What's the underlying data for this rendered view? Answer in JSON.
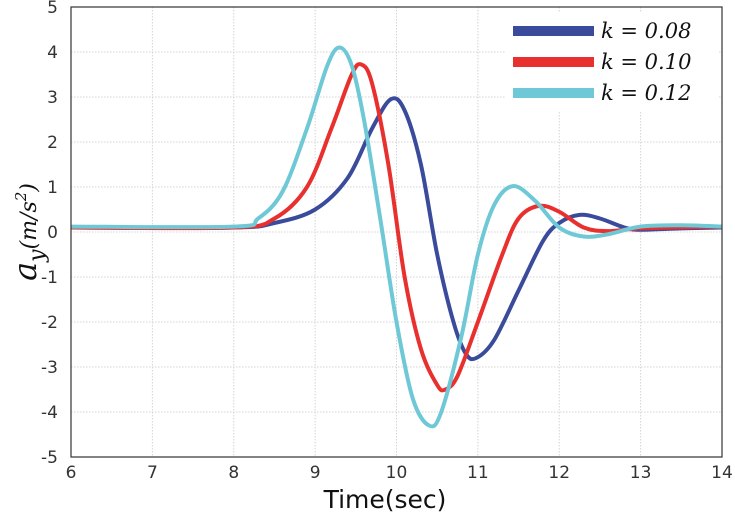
{
  "chart_data": {
    "type": "line",
    "xlabel": "Time(sec)",
    "ylabel": "a_y(m/s^2)",
    "ylabel_main": "a",
    "ylabel_sub": "y",
    "ylabel_rest": "(m/s",
    "ylabel_sup": "2",
    "ylabel_close": ")",
    "xlim": [
      6,
      14
    ],
    "ylim": [
      -5,
      5
    ],
    "xticks": [
      6,
      7,
      8,
      9,
      10,
      11,
      12,
      13,
      14
    ],
    "yticks": [
      -5,
      -4,
      -3,
      -2,
      -1,
      0,
      1,
      2,
      3,
      4,
      5
    ],
    "grid": true,
    "legend_position": "top-right",
    "series": [
      {
        "name": "k = 0.08",
        "color": "#3a4b9c",
        "x": [
          6,
          8,
          8.5,
          9,
          9.4,
          9.7,
          9.93,
          10.1,
          10.3,
          10.5,
          10.7,
          10.85,
          10.98,
          11.2,
          11.5,
          11.8,
          12.0,
          12.25,
          12.5,
          12.8,
          13,
          13.5,
          14
        ],
        "y": [
          0.1,
          0.1,
          0.2,
          0.5,
          1.2,
          2.3,
          2.95,
          2.7,
          1.5,
          -0.5,
          -2.0,
          -2.7,
          -2.8,
          -2.4,
          -1.3,
          -0.2,
          0.2,
          0.38,
          0.3,
          0.1,
          0.05,
          0.08,
          0.1
        ]
      },
      {
        "name": "k = 0.10",
        "color": "#e8302f",
        "x": [
          6,
          8,
          8.5,
          8.9,
          9.2,
          9.45,
          9.57,
          9.7,
          9.9,
          10.1,
          10.3,
          10.5,
          10.6,
          10.75,
          11,
          11.3,
          11.5,
          11.75,
          12,
          12.3,
          12.6,
          13,
          14
        ],
        "y": [
          0.1,
          0.1,
          0.3,
          1.0,
          2.3,
          3.5,
          3.72,
          3.3,
          1.5,
          -1.0,
          -2.6,
          -3.4,
          -3.5,
          -3.2,
          -2.0,
          -0.5,
          0.3,
          0.58,
          0.45,
          0.1,
          0.02,
          0.08,
          0.12
        ]
      },
      {
        "name": "k = 0.12",
        "color": "#6fc8d6",
        "x": [
          6,
          8,
          8.3,
          8.6,
          8.9,
          9.15,
          9.3,
          9.45,
          9.6,
          9.8,
          10,
          10.2,
          10.4,
          10.55,
          10.8,
          11.0,
          11.2,
          11.43,
          11.7,
          12,
          12.3,
          12.6,
          13,
          13.5,
          14
        ],
        "y": [
          0.12,
          0.12,
          0.3,
          0.9,
          2.3,
          3.7,
          4.1,
          3.7,
          2.5,
          0.3,
          -2.0,
          -3.7,
          -4.3,
          -4.0,
          -2.3,
          -0.5,
          0.6,
          1.02,
          0.7,
          0.1,
          -0.1,
          -0.05,
          0.12,
          0.15,
          0.12
        ]
      }
    ]
  }
}
